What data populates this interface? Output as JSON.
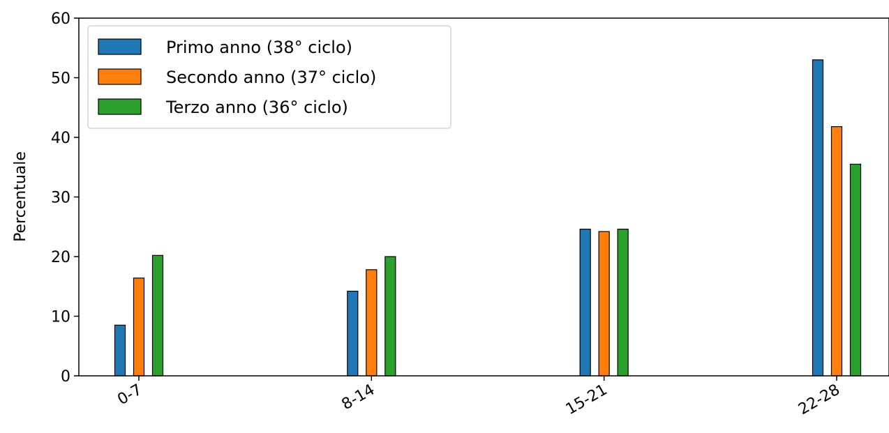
{
  "chart_data": {
    "type": "bar",
    "title": "",
    "xlabel": "",
    "ylabel": "Percentuale",
    "categories": [
      "0-7",
      "8-14",
      "15-21",
      "22-28"
    ],
    "series": [
      {
        "name": "Primo anno (38° ciclo)",
        "color": "#1f77b4",
        "values": [
          8.5,
          14.2,
          24.6,
          53.0
        ]
      },
      {
        "name": "Secondo anno (37° ciclo)",
        "color": "#ff7f0e",
        "values": [
          16.4,
          17.8,
          24.2,
          41.8
        ]
      },
      {
        "name": "Terzo anno (36° ciclo)",
        "color": "#2ca02c",
        "values": [
          20.2,
          20.0,
          24.6,
          35.5
        ]
      }
    ],
    "ylim": [
      0,
      60
    ],
    "yticks": [
      0,
      10,
      20,
      30,
      40,
      50,
      60
    ],
    "grid": false,
    "legend": "top-left"
  }
}
